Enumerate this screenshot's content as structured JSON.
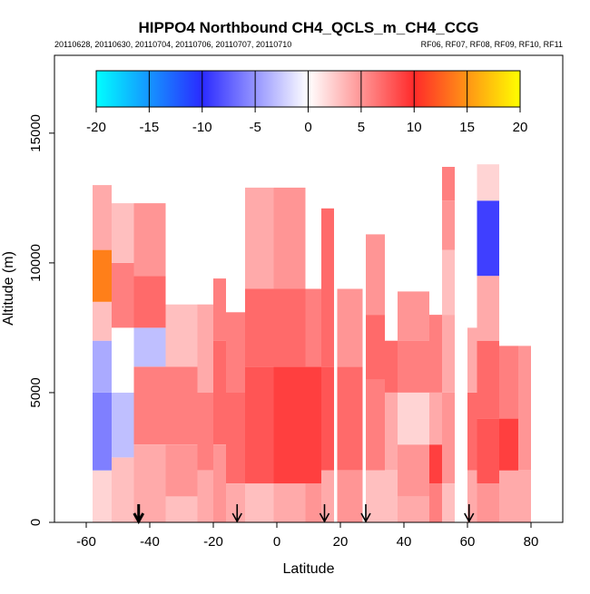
{
  "chart_data": {
    "type": "heatmap",
    "title": "HIPPO4 Northbound CH4_QCLS_m_CH4_CCG",
    "subtitle_left": "20110628, 20110630, 20110704, 20110706, 20110707, 20110710",
    "subtitle_right": "RF06, RF07, RF08, RF09, RF10, RF11",
    "xlabel": "Latitude",
    "ylabel": "Altitude (m)",
    "xlim": [
      -70,
      90
    ],
    "ylim": [
      0,
      18000
    ],
    "x_ticks": [
      -60,
      -40,
      -20,
      0,
      20,
      40,
      60,
      80
    ],
    "y_ticks": [
      0,
      5000,
      10000,
      15000
    ],
    "grid": false,
    "colorbar": {
      "placement": "top-inside",
      "range": [
        -20,
        20
      ],
      "ticks": [
        -20,
        -15,
        -10,
        -5,
        0,
        5,
        10,
        15,
        20
      ]
    },
    "flight_markers_latitude": [
      -43.5,
      -12.5,
      15,
      28,
      60.5
    ],
    "columns": [
      {
        "x0": -58,
        "x1": -52,
        "ztop": 13000,
        "cells": [
          [
            0,
            2000,
            2
          ],
          [
            2000,
            5000,
            -6
          ],
          [
            5000,
            7000,
            -4
          ],
          [
            7000,
            8500,
            3
          ],
          [
            8500,
            10500,
            14
          ],
          [
            10500,
            13000,
            4
          ]
        ]
      },
      {
        "x0": -52,
        "x1": -45,
        "ztop": 12300,
        "cells": [
          [
            0,
            2500,
            3
          ],
          [
            2500,
            5000,
            -3
          ],
          [
            5000,
            7500,
            0
          ],
          [
            7500,
            10000,
            6
          ],
          [
            10000,
            12300,
            3
          ]
        ]
      },
      {
        "x0": -45,
        "x1": -35,
        "ztop": 12300,
        "cells": [
          [
            0,
            3000,
            4
          ],
          [
            3000,
            6000,
            6
          ],
          [
            6000,
            7500,
            -3
          ],
          [
            7500,
            9500,
            7
          ],
          [
            9500,
            12300,
            5
          ]
        ]
      },
      {
        "x0": -35,
        "x1": -25,
        "ztop": 8400,
        "cells": [
          [
            0,
            1000,
            3
          ],
          [
            1000,
            3000,
            5
          ],
          [
            3000,
            6000,
            6
          ],
          [
            6000,
            8400,
            3
          ]
        ]
      },
      {
        "x0": -25,
        "x1": -20,
        "ztop": 8400,
        "cells": [
          [
            0,
            2000,
            4
          ],
          [
            2000,
            5000,
            6
          ],
          [
            5000,
            8400,
            4
          ]
        ]
      },
      {
        "x0": -20,
        "x1": -16,
        "ztop": 9400,
        "cells": [
          [
            0,
            3000,
            5
          ],
          [
            3000,
            7000,
            7
          ],
          [
            7000,
            9400,
            6
          ]
        ]
      },
      {
        "x0": -16,
        "x1": -10,
        "ztop": 8100,
        "cells": [
          [
            0,
            1500,
            4
          ],
          [
            1500,
            5000,
            7
          ],
          [
            5000,
            8100,
            6
          ]
        ]
      },
      {
        "x0": -10,
        "x1": -1,
        "ztop": 12900,
        "cells": [
          [
            0,
            1500,
            3
          ],
          [
            1500,
            6000,
            8
          ],
          [
            6000,
            9000,
            7
          ],
          [
            9000,
            12900,
            4
          ]
        ]
      },
      {
        "x0": -1,
        "x1": 9,
        "ztop": 12900,
        "cells": [
          [
            0,
            1500,
            4
          ],
          [
            1500,
            6000,
            9
          ],
          [
            6000,
            9000,
            7
          ],
          [
            9000,
            12900,
            5
          ]
        ]
      },
      {
        "x0": 9,
        "x1": 14,
        "ztop": 9000,
        "cells": [
          [
            0,
            1500,
            5
          ],
          [
            1500,
            6000,
            9
          ],
          [
            6000,
            9000,
            6
          ]
        ]
      },
      {
        "x0": 14,
        "x1": 18,
        "ztop": 12100,
        "cells": [
          [
            0,
            2000,
            4
          ],
          [
            2000,
            6000,
            8
          ],
          [
            6000,
            9000,
            7
          ],
          [
            9000,
            12100,
            7
          ]
        ]
      },
      {
        "x0": 19,
        "x1": 27,
        "ztop": 9000,
        "cells": [
          [
            0,
            2000,
            5
          ],
          [
            2000,
            6000,
            7
          ],
          [
            6000,
            9000,
            5
          ]
        ]
      },
      {
        "x0": 28,
        "x1": 34,
        "ztop": 11100,
        "cells": [
          [
            0,
            2000,
            3
          ],
          [
            2000,
            5500,
            6
          ],
          [
            5500,
            8000,
            7
          ],
          [
            8000,
            11100,
            5
          ]
        ]
      },
      {
        "x0": 34,
        "x1": 38,
        "ztop": 7000,
        "cells": [
          [
            0,
            2000,
            3
          ],
          [
            2000,
            5000,
            4
          ],
          [
            5000,
            7000,
            7
          ]
        ]
      },
      {
        "x0": 38,
        "x1": 48,
        "ztop": 8900,
        "cells": [
          [
            0,
            1000,
            4
          ],
          [
            1000,
            3000,
            5
          ],
          [
            3000,
            5000,
            2
          ],
          [
            5000,
            7000,
            6
          ],
          [
            7000,
            8900,
            5
          ]
        ]
      },
      {
        "x0": 48,
        "x1": 52,
        "ztop": 8000,
        "cells": [
          [
            0,
            1500,
            6
          ],
          [
            1500,
            3000,
            9
          ],
          [
            3000,
            5000,
            4
          ],
          [
            5000,
            8000,
            6
          ]
        ]
      },
      {
        "x0": 52,
        "x1": 56,
        "ztop": 13700,
        "cells": [
          [
            0,
            1500,
            3
          ],
          [
            1500,
            5000,
            5
          ],
          [
            5000,
            8000,
            4
          ],
          [
            8000,
            10500,
            3
          ],
          [
            10500,
            12400,
            5
          ],
          [
            12400,
            13700,
            6
          ]
        ]
      },
      {
        "x0": 60,
        "x1": 63,
        "ztop": 7500,
        "cells": [
          [
            0,
            2000,
            4
          ],
          [
            2000,
            5000,
            7
          ],
          [
            5000,
            7500,
            4
          ]
        ]
      },
      {
        "x0": 63,
        "x1": 70,
        "ztop": 13800,
        "cells": [
          [
            0,
            1500,
            5
          ],
          [
            1500,
            4000,
            8
          ],
          [
            4000,
            7000,
            7
          ],
          [
            7000,
            9500,
            4
          ],
          [
            9500,
            12400,
            -9
          ],
          [
            12400,
            13800,
            2
          ]
        ]
      },
      {
        "x0": 70,
        "x1": 76,
        "ztop": 6800,
        "cells": [
          [
            0,
            2000,
            4
          ],
          [
            2000,
            4000,
            9
          ],
          [
            4000,
            6800,
            6
          ]
        ]
      },
      {
        "x0": 76,
        "x1": 80,
        "ztop": 6800,
        "cells": [
          [
            0,
            2000,
            4
          ],
          [
            2000,
            6800,
            5
          ]
        ]
      }
    ]
  }
}
